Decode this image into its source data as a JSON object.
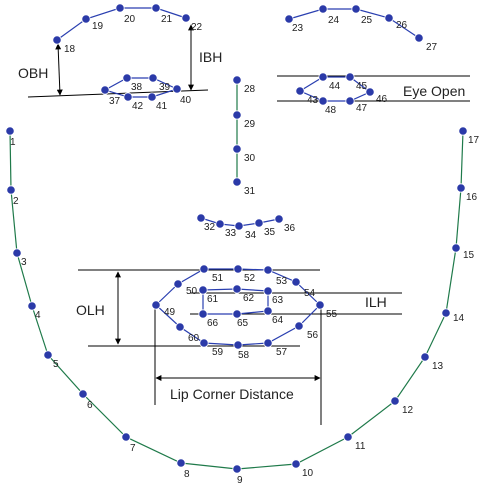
{
  "diagram": {
    "colors": {
      "point_fill": "#2b3aa8",
      "point_stroke": "#ffffff",
      "chin_line": "#1f7a4a",
      "feature_line": "#2a3fb0",
      "measure_line": "#000000"
    },
    "measurements": {
      "obh": "OBH",
      "ibh": "IBH",
      "eye_open": "Eye Open",
      "olh": "OLH",
      "ilh": "ILH",
      "lip_corner_distance": "Lip Corner Distance"
    },
    "point_labels": {
      "p1": "1",
      "p2": "2",
      "p3": "3",
      "p4": "4",
      "p5": "5",
      "p6": "6",
      "p7": "7",
      "p8": "8",
      "p9": "9",
      "p10": "10",
      "p11": "11",
      "p12": "12",
      "p13": "13",
      "p14": "14",
      "p15": "15",
      "p16": "16",
      "p17": "17",
      "p18": "18",
      "p19": "19",
      "p20": "20",
      "p21": "21",
      "p22": "22",
      "p23": "23",
      "p24": "24",
      "p25": "25",
      "p26": "26",
      "p27": "27",
      "p28": "28",
      "p29": "29",
      "p30": "30",
      "p31": "31",
      "p32": "32",
      "p33": "33",
      "p34": "34",
      "p35": "35",
      "p36": "36",
      "p37": "37",
      "p38": "38",
      "p39": "39",
      "p40": "40",
      "p41": "41",
      "p42": "42",
      "p43": "43",
      "p44": "44",
      "p45": "45",
      "p46": "46",
      "p47": "47",
      "p48": "48",
      "p49": "49",
      "p50": "50",
      "p51": "51",
      "p52": "52",
      "p53": "53",
      "p54": "54",
      "p55": "55",
      "p56": "56",
      "p57": "57",
      "p58": "58",
      "p59": "59",
      "p60": "60",
      "p61": "61",
      "p62": "62",
      "p63": "63",
      "p64": "64",
      "p65": "65",
      "p66": "66"
    }
  }
}
